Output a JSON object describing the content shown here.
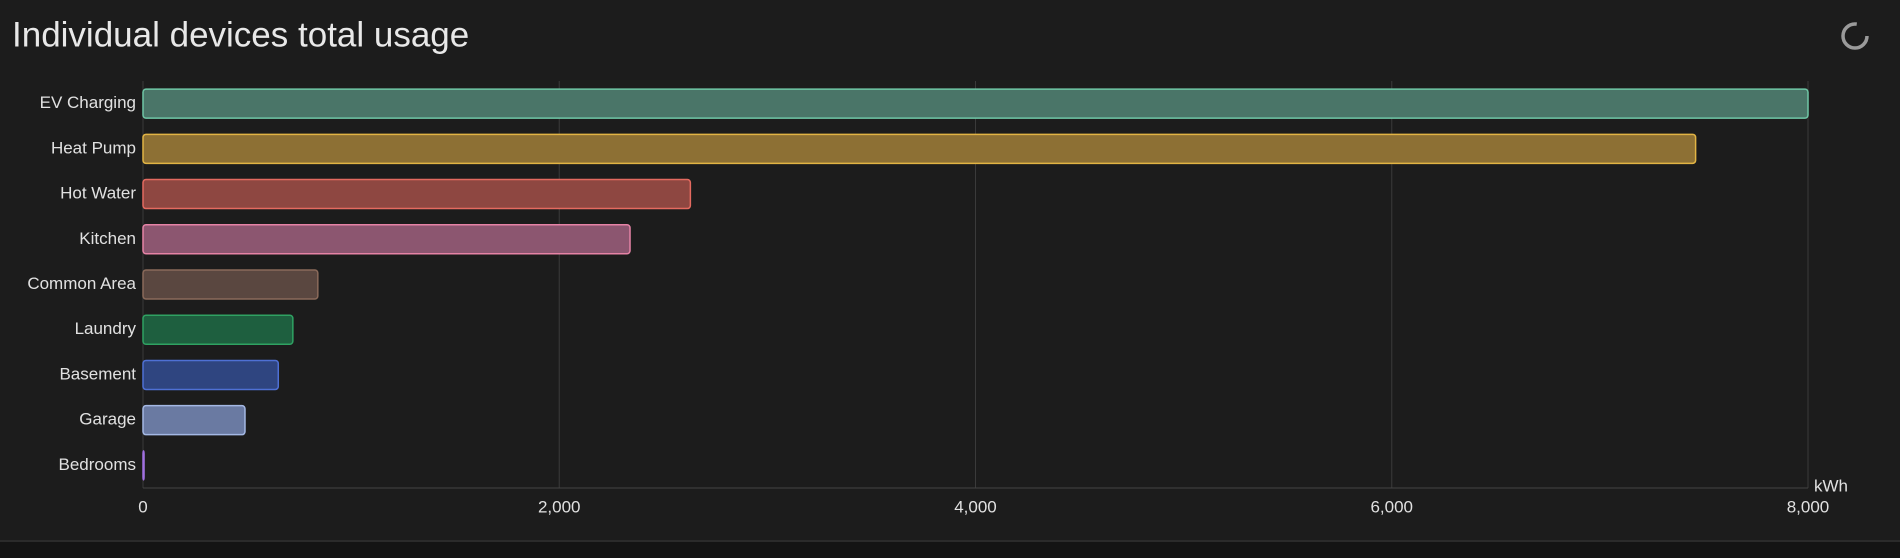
{
  "chart_data": {
    "type": "bar",
    "orientation": "horizontal",
    "title": "Individual devices total usage",
    "categories": [
      "EV Charging",
      "Heat Pump",
      "Hot Water",
      "Kitchen",
      "Common Area",
      "Laundry",
      "Basement",
      "Garage",
      "Bedrooms"
    ],
    "values": [
      8000,
      7460,
      2630,
      2340,
      840,
      720,
      650,
      490,
      5
    ],
    "colors": [
      "#4a7568",
      "#8d7034",
      "#8e4741",
      "#8c5670",
      "#5a4740",
      "#1e5f3f",
      "#2f4580",
      "#6a7aa2",
      "#7c52b0"
    ],
    "border_colors": [
      "#6fc7a6",
      "#e2b444",
      "#e46a60",
      "#e683a6",
      "#8a6a5a",
      "#2fa262",
      "#4f70d4",
      "#a4b8e4",
      "#a070e0"
    ],
    "xlim": [
      0,
      8000
    ],
    "xticks": [
      0,
      {
        "value": 2000,
        "label": "2,000"
      },
      {
        "value": 4000,
        "label": "4,000"
      },
      {
        "value": 6000,
        "label": "6,000"
      },
      {
        "value": 8000,
        "label": "8,000"
      }
    ],
    "x_unit": "kWh",
    "grid": true
  }
}
